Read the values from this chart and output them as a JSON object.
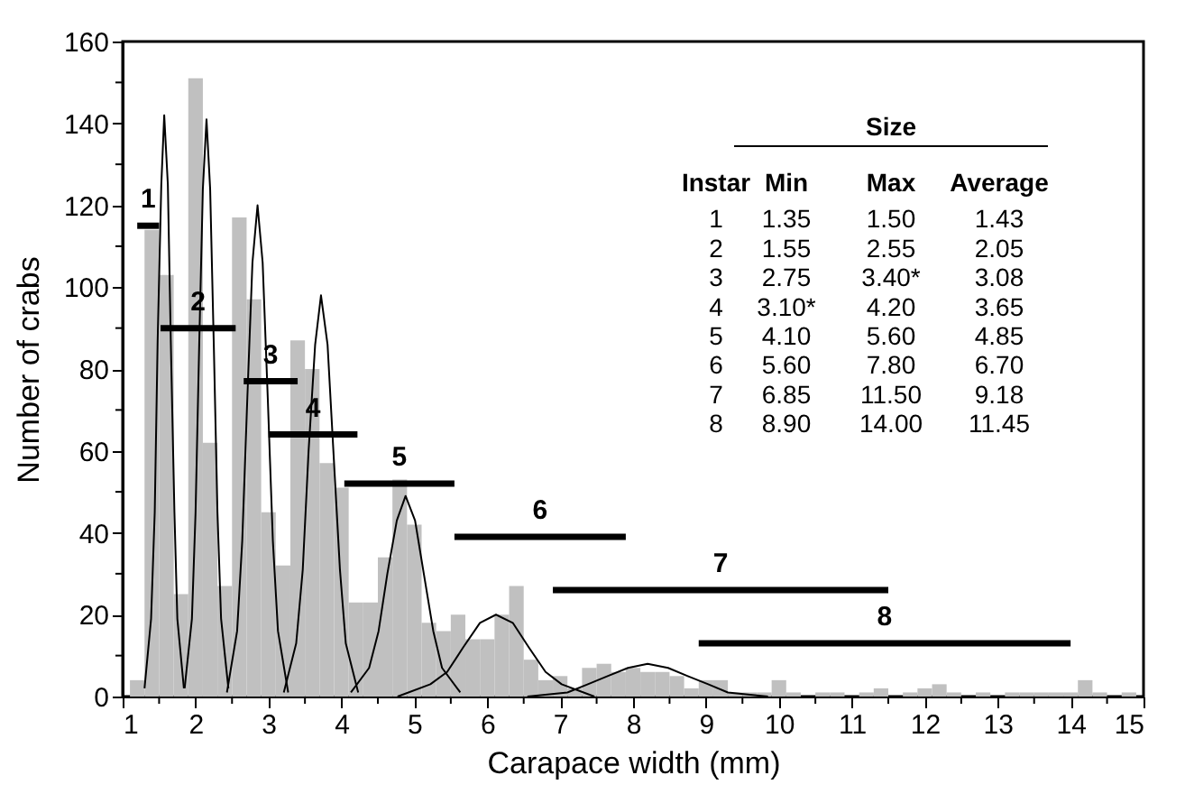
{
  "chart_data": {
    "type": "histogram",
    "xlabel": "Carapace width (mm)",
    "ylabel": "Number of crabs",
    "color": "#c0c0c0",
    "bins": [
      1.1,
      1.3,
      1.5,
      1.7,
      1.9,
      2.1,
      2.3,
      2.5,
      2.7,
      2.9,
      3.1,
      3.3,
      3.5,
      3.7,
      3.9,
      4.1,
      4.3,
      4.5,
      4.7,
      4.9,
      5.1,
      5.3,
      5.5,
      5.7,
      5.9,
      6.1,
      6.3,
      6.5,
      6.7,
      6.9,
      7.1,
      7.3,
      7.5,
      7.7,
      7.9,
      8.1,
      8.3,
      8.5,
      8.7,
      8.9,
      9.1,
      9.3,
      9.5,
      9.7,
      9.9,
      10.1,
      10.3,
      10.5,
      10.7,
      10.9,
      11.1,
      11.3,
      11.5,
      11.7,
      11.9,
      12.1,
      12.3,
      12.5,
      12.7,
      12.9,
      13.1,
      13.3,
      13.5,
      13.7,
      13.9,
      14.1,
      14.3,
      14.5,
      14.7,
      14.9
    ],
    "values": [
      4,
      114,
      103,
      25,
      151,
      62,
      27,
      117,
      97,
      45,
      32,
      87,
      80,
      57,
      51,
      23,
      23,
      34,
      53,
      42,
      18,
      16,
      20,
      14,
      14,
      20,
      27,
      9,
      4,
      5,
      2,
      7,
      8,
      6,
      7,
      6,
      6,
      5,
      2,
      4,
      4,
      1,
      1,
      1,
      4,
      1,
      0,
      1,
      1,
      0,
      1,
      2,
      0,
      1,
      2,
      3,
      1,
      0,
      1,
      0,
      1,
      1,
      1,
      1,
      1,
      4,
      1,
      0,
      1
    ],
    "series": [
      {
        "type": "line",
        "color": "#000000",
        "x": [
          1.3,
          1.39,
          1.44,
          1.48,
          1.53,
          1.57,
          1.62,
          1.66,
          1.71,
          1.75,
          1.84
        ],
        "values": [
          2,
          19,
          45,
          87,
          125,
          142,
          125,
          87,
          45,
          19,
          2
        ]
      },
      {
        "type": "line",
        "color": "#000000",
        "x": [
          1.85,
          1.95,
          2.0,
          2.05,
          2.1,
          2.15,
          2.2,
          2.25,
          2.3,
          2.35,
          2.45
        ],
        "values": [
          2,
          19,
          45,
          86,
          124,
          141,
          124,
          86,
          45,
          19,
          2
        ]
      },
      {
        "type": "line",
        "color": "#000000",
        "x": [
          2.43,
          2.57,
          2.64,
          2.71,
          2.78,
          2.85,
          2.92,
          2.99,
          3.06,
          3.13,
          3.27
        ],
        "values": [
          1,
          16,
          38,
          73,
          106,
          120,
          106,
          73,
          38,
          16,
          1
        ]
      },
      {
        "type": "line",
        "color": "#000000",
        "x": [
          3.21,
          3.38,
          3.47,
          3.55,
          3.64,
          3.72,
          3.81,
          3.89,
          3.98,
          4.06,
          4.23
        ],
        "values": [
          1,
          13,
          31,
          60,
          86,
          98,
          86,
          60,
          31,
          13,
          1
        ]
      },
      {
        "type": "line",
        "color": "#000000",
        "x": [
          4.13,
          4.38,
          4.51,
          4.63,
          4.76,
          4.88,
          5.01,
          5.13,
          5.26,
          5.38,
          5.63
        ],
        "values": [
          1,
          7,
          16,
          30,
          43,
          49,
          43,
          30,
          16,
          7,
          1
        ]
      },
      {
        "type": "line",
        "color": "#000000",
        "x": [
          4.77,
          5.22,
          5.45,
          5.67,
          5.9,
          6.12,
          6.35,
          6.57,
          6.8,
          7.02,
          7.47
        ],
        "values": [
          0,
          3,
          6,
          12,
          18,
          20,
          18,
          12,
          6,
          3,
          0
        ]
      },
      {
        "type": "line",
        "color": "#000000",
        "x": [
          6.55,
          7.1,
          7.38,
          7.65,
          7.93,
          8.2,
          8.48,
          8.75,
          9.03,
          9.3,
          9.85
        ],
        "values": [
          0,
          1,
          3,
          5,
          7,
          8,
          7,
          5,
          3,
          1,
          0
        ]
      },
      {
        "type": "line",
        "name": "1",
        "color": "#000000",
        "x": [
          1.2,
          1.5
        ],
        "values": [
          115,
          115
        ]
      },
      {
        "type": "line",
        "name": "2",
        "color": "#000000",
        "x": [
          1.52,
          2.55
        ],
        "values": [
          90,
          90
        ]
      },
      {
        "type": "line",
        "name": "3",
        "color": "#000000",
        "x": [
          2.66,
          3.4
        ],
        "values": [
          77,
          77
        ]
      },
      {
        "type": "line",
        "name": "4",
        "color": "#000000",
        "x": [
          3.0,
          4.22
        ],
        "values": [
          64,
          64
        ]
      },
      {
        "type": "line",
        "name": "5",
        "color": "#000000",
        "x": [
          4.04,
          5.55
        ],
        "values": [
          52,
          52
        ]
      },
      {
        "type": "line",
        "name": "6",
        "color": "#000000",
        "x": [
          5.55,
          7.9
        ],
        "values": [
          39,
          39
        ]
      },
      {
        "type": "line",
        "name": "7",
        "color": "#000000",
        "x": [
          6.9,
          11.5
        ],
        "values": [
          26,
          26
        ]
      },
      {
        "type": "line",
        "name": "8",
        "color": "#000000",
        "x": [
          8.9,
          14.0
        ],
        "values": [
          13,
          13
        ]
      }
    ],
    "xlim": [
      1,
      15
    ],
    "xticks": [
      1,
      {
        "value": 1.5,
        "label": null
      },
      2,
      {
        "value": 2.5,
        "label": null
      },
      3,
      {
        "value": 3.5,
        "label": null
      },
      4,
      {
        "value": 4.5,
        "label": null
      },
      5,
      {
        "value": 5.5,
        "label": null
      },
      6,
      {
        "value": 6.5,
        "label": null
      },
      7,
      {
        "value": 7.5,
        "label": null
      },
      8,
      {
        "value": 8.5,
        "label": null
      },
      9,
      {
        "value": 9.5,
        "label": null
      },
      10,
      {
        "value": 10.5,
        "label": null
      },
      11,
      {
        "value": 11.5,
        "label": null
      },
      12,
      {
        "value": 12.5,
        "label": null
      },
      13,
      {
        "value": 13.5,
        "label": null
      },
      14,
      {
        "value": 14.5,
        "label": null
      },
      15
    ],
    "ylim": [
      0,
      160
    ],
    "yticks": [
      0,
      {
        "value": 10,
        "label": null
      },
      20,
      {
        "value": 30,
        "label": null
      },
      40,
      {
        "value": 50,
        "label": null
      },
      60,
      {
        "value": 70,
        "label": null
      },
      80,
      {
        "value": 90,
        "label": null
      },
      100,
      {
        "value": 110,
        "label": null
      },
      120,
      {
        "value": 130,
        "label": null
      },
      140,
      {
        "value": 150,
        "label": null
      },
      160
    ],
    "grid": false,
    "annotations": [
      "Size",
      "Instar",
      "Min",
      "Max",
      "Average",
      "1",
      "1.35",
      "1.50",
      "1.43",
      "2",
      "1.55",
      "2.55",
      "2.05",
      "3",
      "2.75",
      "3.40*",
      "3.08",
      "4",
      "3.10*",
      "4.20",
      "3.65",
      "5",
      "4.10",
      "5.60",
      "4.85",
      "6",
      "5.60",
      "7.80",
      "6.70",
      "7",
      "6.85",
      "11.50",
      "9.18",
      "8",
      "8.90",
      "14.00",
      "11.45"
    ]
  }
}
